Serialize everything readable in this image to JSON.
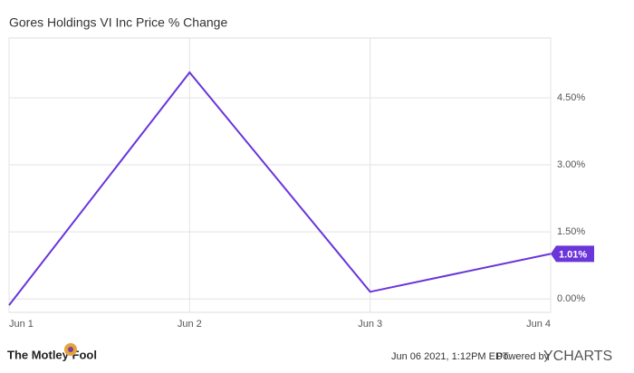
{
  "chart_data": {
    "type": "line",
    "title": "Gores Holdings VI Inc Price % Change",
    "categories": [
      "Jun 1",
      "Jun 2",
      "Jun 3",
      "Jun 4"
    ],
    "values": [
      -0.14,
      5.07,
      0.16,
      1.01
    ],
    "value_labels": [
      null,
      null,
      null,
      "1.01%"
    ],
    "color": "#6a35d9",
    "ylim": [
      -0.3,
      5.84
    ],
    "yticks": [
      {
        "value": 0,
        "label": "0.00%"
      },
      {
        "value": 1.5,
        "label": "1.50%"
      },
      {
        "value": 3,
        "label": "3.00%"
      },
      {
        "value": 4.5,
        "label": "4.50%"
      }
    ],
    "grid": true,
    "logo": "The Motley Fool",
    "timestamp": "Jun 06 2021, 1:12PM EDT.",
    "powered_by": "Powered by",
    "brand": "YCHARTS"
  }
}
